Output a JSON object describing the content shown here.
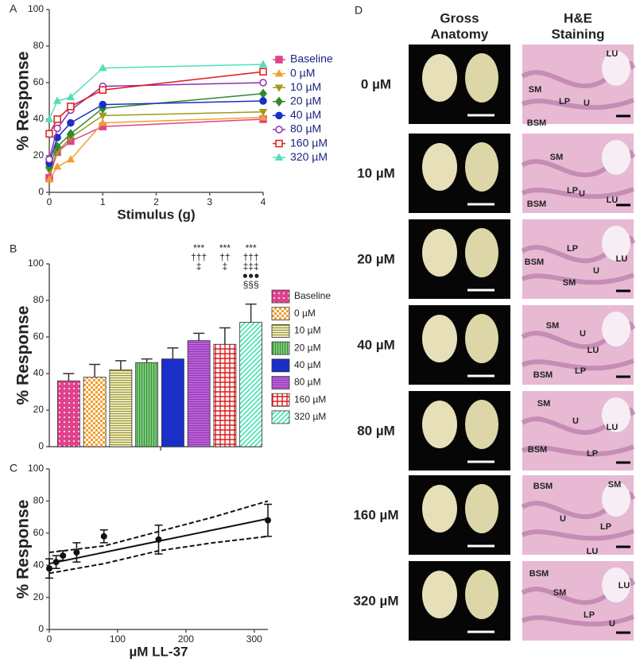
{
  "chart_data": [
    {
      "type": "line",
      "panel": "A",
      "y_label": "% Response",
      "x_label": "Stimulus (g)",
      "x": [
        0,
        0.15,
        0.4,
        1,
        4
      ],
      "xlim": [
        0,
        4
      ],
      "xticks": [
        0,
        1,
        2,
        3,
        4
      ],
      "ylim": [
        0,
        100
      ],
      "yticks": [
        0,
        20,
        40,
        60,
        80,
        100
      ],
      "series": [
        {
          "name": "Baseline",
          "color": "#e0428c",
          "marker": "square",
          "values": [
            8,
            22,
            28,
            36,
            40
          ]
        },
        {
          "name": "0 µM",
          "color": "#f0a030",
          "marker": "triangle",
          "values": [
            7,
            14,
            18,
            38,
            41
          ]
        },
        {
          "name": "10 µM",
          "color": "#a09a20",
          "marker": "triangle-down",
          "values": [
            12,
            22,
            30,
            42,
            44
          ]
        },
        {
          "name": "20 µM",
          "color": "#2e8a2e",
          "marker": "diamond",
          "values": [
            14,
            25,
            32,
            46,
            54
          ]
        },
        {
          "name": "40 µM",
          "color": "#1a2ec8",
          "marker": "circle",
          "values": [
            16,
            30,
            38,
            48,
            50
          ]
        },
        {
          "name": "80 µM",
          "color": "#8e30b0",
          "marker": "circle-open",
          "values": [
            18,
            35,
            45,
            58,
            60
          ]
        },
        {
          "name": "160 µM",
          "color": "#e01818",
          "marker": "square-open",
          "values": [
            32,
            40,
            47,
            56,
            66
          ]
        },
        {
          "name": "320 µM",
          "color": "#50e0b8",
          "marker": "triangle",
          "values": [
            40,
            50,
            52,
            68,
            70
          ]
        }
      ]
    },
    {
      "type": "bar",
      "panel": "B",
      "y_label": "% Response",
      "ylim": [
        0,
        100
      ],
      "yticks": [
        0,
        20,
        40,
        60,
        80,
        100
      ],
      "series": [
        {
          "name": "Baseline",
          "color": "#e0428c",
          "pattern": "dots",
          "values": [
            36
          ],
          "errors": [
            4
          ]
        },
        {
          "name": "0 µM",
          "color": "#f0a030",
          "pattern": "checker",
          "values": [
            38
          ],
          "errors": [
            7
          ]
        },
        {
          "name": "10 µM",
          "color": "#a09a20",
          "pattern": "hlines",
          "values": [
            42
          ],
          "errors": [
            5
          ]
        },
        {
          "name": "20 µM",
          "color": "#2e9a2e",
          "pattern": "vlines",
          "values": [
            46
          ],
          "errors": [
            2
          ]
        },
        {
          "name": "40 µM",
          "color": "#1a2ec8",
          "pattern": "solid",
          "values": [
            48
          ],
          "errors": [
            6
          ]
        },
        {
          "name": "80 µM",
          "color": "#9c30c0",
          "pattern": "hstripes",
          "values": [
            58
          ],
          "errors": [
            4
          ],
          "annotation": [
            "***",
            "†††",
            "‡"
          ]
        },
        {
          "name": "160 µM",
          "color": "#e01818",
          "pattern": "grid",
          "values": [
            56
          ],
          "errors": [
            9
          ],
          "annotation": [
            "***",
            "††",
            "‡"
          ]
        },
        {
          "name": "320 µM",
          "color": "#40e0b0",
          "pattern": "diag",
          "values": [
            68
          ],
          "errors": [
            10
          ],
          "annotation": [
            "***",
            "†††",
            "‡‡‡",
            "●●●",
            "§§§"
          ]
        }
      ]
    },
    {
      "type": "scatter",
      "panel": "C",
      "y_label": "% Response",
      "x_label": "µM LL-37",
      "x": [
        0,
        10,
        20,
        40,
        80,
        160,
        320
      ],
      "values": [
        38,
        42,
        46,
        48,
        58,
        56,
        68
      ],
      "errors": [
        6,
        4,
        3,
        6,
        4,
        9,
        10
      ],
      "fit": {
        "x": [
          0,
          80,
          160,
          240,
          320
        ],
        "y": [
          41,
          48,
          55,
          62,
          69
        ]
      },
      "ci_upper": {
        "x": [
          0,
          80,
          160,
          240,
          320
        ],
        "y": [
          48,
          52,
          61,
          70,
          80
        ]
      },
      "ci_lower": {
        "x": [
          0,
          80,
          160,
          240,
          320
        ],
        "y": [
          35,
          41,
          49,
          54,
          58
        ]
      },
      "xlim": [
        0,
        320
      ],
      "xticks": [
        0,
        100,
        200,
        300
      ],
      "ylim": [
        0,
        100
      ],
      "yticks": [
        0,
        20,
        40,
        60,
        80,
        100
      ]
    }
  ],
  "panel_d": {
    "panel": "D",
    "columns": [
      [
        "Gross",
        "Anatomy"
      ],
      [
        "H&E",
        "Staining"
      ]
    ],
    "rows": [
      {
        "label": "0 µM",
        "tissue_labels": [
          "LU",
          "SM",
          "LP",
          "U",
          "BSM"
        ]
      },
      {
        "label": "10 µM",
        "tissue_labels": [
          "SM",
          "U",
          "LU",
          "LP",
          "BSM"
        ]
      },
      {
        "label": "20 µM",
        "tissue_labels": [
          "LP",
          "BSM",
          "LU",
          "SM",
          "U"
        ]
      },
      {
        "label": "40 µM",
        "tissue_labels": [
          "SM",
          "U",
          "LU",
          "LP",
          "BSM"
        ]
      },
      {
        "label": "80 µM",
        "tissue_labels": [
          "SM",
          "U",
          "LU",
          "BSM",
          "LP"
        ]
      },
      {
        "label": "160 µM",
        "tissue_labels": [
          "BSM",
          "SM",
          "U",
          "LP",
          "LU"
        ]
      },
      {
        "label": "320 µM",
        "tissue_labels": [
          "BSM",
          "SM",
          "LU",
          "LP",
          "U"
        ]
      }
    ]
  }
}
